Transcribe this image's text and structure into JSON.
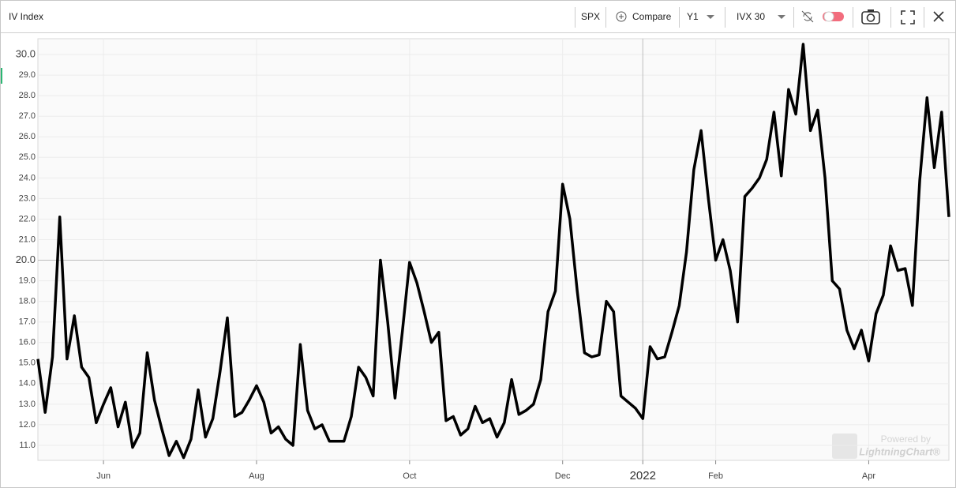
{
  "toolbar": {
    "title": "IV Index",
    "symbol": "SPX",
    "compare": "Compare",
    "period": "Y1",
    "measure": "IVX 30"
  },
  "watermark": {
    "line1": "Powered by",
    "line2": "LightningChart®"
  },
  "chart_data": {
    "type": "line",
    "color": "#000000",
    "grid": true,
    "categories": [
      null,
      null,
      null,
      null,
      null,
      null,
      null,
      null,
      null,
      "Jun",
      null,
      null,
      null,
      null,
      null,
      null,
      null,
      null,
      null,
      null,
      null,
      null,
      null,
      null,
      null,
      null,
      null,
      null,
      null,
      null,
      "Aug",
      null,
      null,
      null,
      null,
      null,
      null,
      null,
      null,
      null,
      null,
      null,
      null,
      null,
      null,
      null,
      null,
      null,
      null,
      null,
      null,
      "Oct",
      null,
      null,
      null,
      null,
      null,
      null,
      null,
      null,
      null,
      null,
      null,
      null,
      null,
      null,
      null,
      null,
      null,
      null,
      null,
      null,
      "Dec",
      null,
      null,
      null,
      null,
      null,
      null,
      null,
      null,
      null,
      null,
      "2022",
      null,
      null,
      null,
      null,
      null,
      null,
      null,
      null,
      null,
      "Feb",
      null,
      null,
      null,
      null,
      null,
      null,
      null,
      null,
      null,
      null,
      null,
      null,
      null,
      null,
      null,
      null,
      null,
      null,
      null,
      null,
      "Apr",
      null,
      null,
      null,
      null,
      null,
      null,
      null,
      null,
      null,
      null,
      null
    ],
    "values": [
      15.2,
      12.6,
      15.3,
      22.1,
      15.2,
      17.3,
      14.8,
      14.3,
      12.1,
      13.0,
      13.8,
      11.9,
      13.1,
      10.9,
      11.6,
      15.5,
      13.2,
      11.8,
      10.5,
      11.2,
      10.4,
      11.3,
      13.7,
      11.4,
      12.3,
      14.6,
      17.2,
      12.4,
      12.6,
      13.2,
      13.9,
      13.1,
      11.6,
      11.9,
      11.3,
      11.0,
      15.9,
      12.7,
      11.8,
      12.0,
      11.2,
      11.2,
      11.2,
      12.4,
      14.8,
      14.3,
      13.4,
      20.0,
      17.0,
      13.3,
      16.5,
      19.9,
      18.9,
      17.5,
      16.0,
      16.5,
      12.2,
      12.4,
      11.5,
      11.8,
      12.9,
      12.1,
      12.3,
      11.4,
      12.1,
      14.2,
      12.5,
      12.7,
      13.0,
      14.2,
      17.5,
      18.5,
      23.7,
      22.0,
      18.5,
      15.5,
      15.3,
      15.4,
      18.0,
      17.5,
      13.4,
      13.1,
      12.8,
      12.3,
      15.8,
      15.2,
      15.3,
      16.5,
      17.8,
      20.4,
      24.4,
      26.3,
      23.0,
      20.0,
      21.0,
      19.5,
      17.0,
      23.1,
      23.5,
      24.0,
      24.9,
      27.2,
      24.1,
      28.3,
      27.1,
      30.5,
      26.3,
      27.3,
      24.0,
      19.0,
      18.6,
      16.6,
      15.7,
      16.6,
      15.1,
      17.4,
      18.3,
      20.7,
      19.5,
      19.6,
      17.8,
      23.9,
      27.9,
      24.5,
      27.2,
      22.1
    ],
    "ylim": [
      10.27,
      30.77
    ],
    "yticks": [
      {
        "value": 11,
        "label": "11.0"
      },
      {
        "value": 12,
        "label": "12.0"
      },
      {
        "value": 13,
        "label": "13.0"
      },
      {
        "value": 14,
        "label": "14.0"
      },
      {
        "value": 15,
        "label": "15.0"
      },
      {
        "value": 16,
        "label": "16.0"
      },
      {
        "value": 17,
        "label": "17.0"
      },
      {
        "value": 18,
        "label": "18.0"
      },
      {
        "value": 19,
        "label": "19.0"
      },
      {
        "value": 20,
        "label": "20.0"
      },
      {
        "value": 21,
        "label": "21.0"
      },
      {
        "value": 22,
        "label": "22.0"
      },
      {
        "value": 23,
        "label": "23.0"
      },
      {
        "value": 24,
        "label": "24.0"
      },
      {
        "value": 25,
        "label": "25.0"
      },
      {
        "value": 26,
        "label": "26.0"
      },
      {
        "value": 27,
        "label": "27.0"
      },
      {
        "value": 28,
        "label": "28.0"
      },
      {
        "value": 29,
        "label": "29.0"
      },
      {
        "value": 30,
        "label": "30.0"
      }
    ]
  }
}
